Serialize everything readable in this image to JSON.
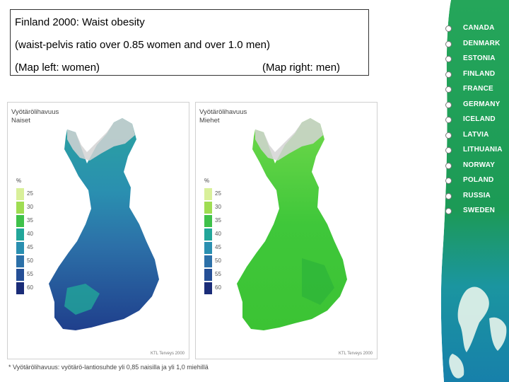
{
  "title": {
    "line1": "Finland 2000: Waist obesity",
    "line2": "(waist-pelvis ratio over 0.85 women  and over 1.0 men)",
    "line3_left": "(Map left: women)",
    "line3_right": "(Map right: men)"
  },
  "map_left": {
    "heading_line1": "Vyötärölihavuus",
    "heading_line2": "Naiset",
    "legend_unit": "%",
    "legend": [
      {
        "label": "25",
        "color": "#d9f09a"
      },
      {
        "label": "30",
        "color": "#9fdd52"
      },
      {
        "label": "35",
        "color": "#3fc14a"
      },
      {
        "label": "40",
        "color": "#22a69a"
      },
      {
        "label": "45",
        "color": "#2a8fb0"
      },
      {
        "label": "50",
        "color": "#2c70a8"
      },
      {
        "label": "55",
        "color": "#254f96"
      },
      {
        "label": "60",
        "color": "#1a2c78"
      }
    ],
    "credit": "KTL Terveys 2000"
  },
  "map_right": {
    "heading_line1": "Vyötärölihavuus",
    "heading_line2": "Miehet",
    "legend_unit": "%",
    "legend": [
      {
        "label": "25",
        "color": "#d9f09a"
      },
      {
        "label": "30",
        "color": "#9fdd52"
      },
      {
        "label": "35",
        "color": "#3fc14a"
      },
      {
        "label": "40",
        "color": "#22a69a"
      },
      {
        "label": "45",
        "color": "#2a8fb0"
      },
      {
        "label": "50",
        "color": "#2c70a8"
      },
      {
        "label": "55",
        "color": "#254f96"
      },
      {
        "label": "60",
        "color": "#1a2c78"
      }
    ],
    "credit": "KTL Terveys 2000"
  },
  "footnote": "* Vyötärölihavuus: vyötärö-lantiosuhde yli 0,85 naisilla ja yli 1,0 miehillä",
  "countries": [
    "CANADA",
    "DENMARK",
    "ESTONIA",
    "FINLAND",
    "FRANCE",
    "GERMANY",
    "ICELAND",
    "LATVIA",
    "LITHUANIA",
    "NORWAY",
    "POLAND",
    "RUSSIA",
    "SWEDEN"
  ],
  "colors": {
    "sidebar_green": "#1f9e53",
    "sidebar_teal": "#1788a5",
    "women_map": "#2a7aa3",
    "men_map": "#36c433"
  }
}
